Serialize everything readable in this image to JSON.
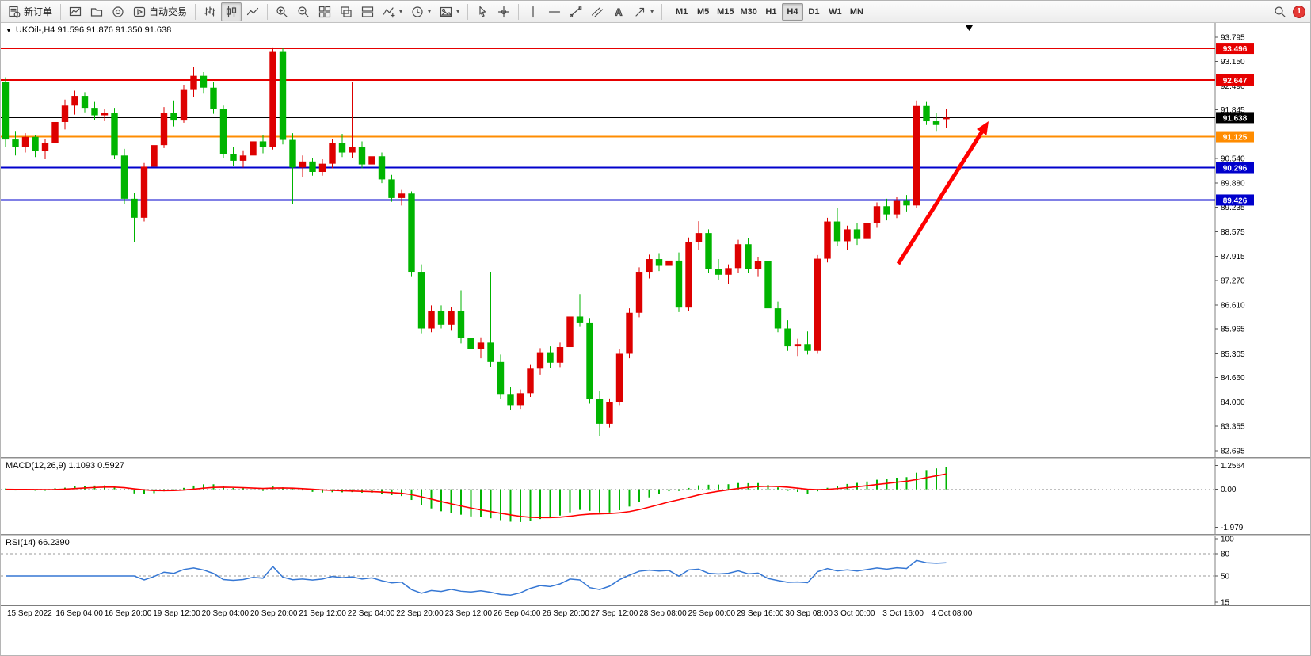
{
  "toolbar": {
    "new_order": "新订单",
    "autotrade": "自动交易",
    "timeframes": [
      "M1",
      "M5",
      "M15",
      "M30",
      "H1",
      "H4",
      "D1",
      "W1",
      "MN"
    ],
    "active_timeframe": "H4",
    "notification_count": "1"
  },
  "icons": {
    "symbol_dropdown": "▼",
    "dropdown_caret": "▾",
    "text_tool": "A"
  },
  "chart": {
    "symbol_info": "UKOil-,H4  91.596 91.876 91.350 91.638"
  },
  "macd": {
    "label": "MACD(12,26,9) 1.1093 0.5927",
    "axis": [
      "1.2564",
      "0.00",
      "-1.979"
    ]
  },
  "rsi": {
    "label": "RSI(14) 66.2390",
    "axis": [
      "100",
      "80",
      "50",
      "15"
    ],
    "levels": [
      80,
      50
    ]
  },
  "chart_data": {
    "type": "candlestick",
    "symbol": "UKOil-",
    "timeframe": "H4",
    "title": "UKOil-,H4",
    "current_ohlc": {
      "open": 91.596,
      "high": 91.876,
      "low": 91.35,
      "close": 91.638
    },
    "price_axis_ticks": [
      "93.795",
      "93.150",
      "92.490",
      "91.845",
      "90.540",
      "89.880",
      "89.235",
      "88.575",
      "87.915",
      "87.270",
      "86.610",
      "85.965",
      "85.305",
      "84.660",
      "84.000",
      "83.355",
      "82.695"
    ],
    "time_axis": [
      "15 Sep 2022",
      "16 Sep 04:00",
      "16 Sep 20:00",
      "19 Sep 12:00",
      "20 Sep 04:00",
      "20 Sep 20:00",
      "21 Sep 12:00",
      "22 Sep 04:00",
      "22 Sep 20:00",
      "23 Sep 12:00",
      "26 Sep 04:00",
      "26 Sep 20:00",
      "27 Sep 12:00",
      "28 Sep 08:00",
      "29 Sep 00:00",
      "29 Sep 16:00",
      "30 Sep 08:00",
      "3 Oct 00:00",
      "3 Oct 16:00",
      "4 Oct 08:00"
    ],
    "hlines": [
      {
        "value": 93.496,
        "label": "93.496",
        "color": "#e60000",
        "width": 2
      },
      {
        "value": 92.647,
        "label": "92.647",
        "color": "#e60000",
        "width": 2
      },
      {
        "value": 91.638,
        "label": "91.638",
        "color": "#000000",
        "width": 1
      },
      {
        "value": 91.125,
        "label": "91.125",
        "color": "#ff8c00",
        "width": 2
      },
      {
        "value": 90.296,
        "label": "90.296",
        "color": "#0000cc",
        "width": 1.6
      },
      {
        "value": 89.426,
        "label": "89.426",
        "color": "#0000cc",
        "width": 1.6
      }
    ],
    "colors": {
      "bull": "#dd0000",
      "bear": "#00b400",
      "macd_hist": "#00b400",
      "macd_signal": "#ff0000",
      "rsi_line": "#3577d4",
      "axis_line": "#808080",
      "arrow": "#ff0000"
    },
    "arrow": {
      "from": [
        1133,
        304
      ],
      "to": [
        1247,
        124
      ],
      "color": "#ff0000"
    },
    "candles": [
      [
        92.6,
        92.72,
        90.85,
        91.05
      ],
      [
        91.05,
        91.28,
        90.62,
        90.85
      ],
      [
        90.85,
        91.22,
        90.7,
        91.12
      ],
      [
        91.12,
        91.18,
        90.58,
        90.74
      ],
      [
        90.74,
        91.06,
        90.52,
        90.96
      ],
      [
        90.96,
        91.62,
        90.88,
        91.52
      ],
      [
        91.52,
        92.12,
        91.32,
        91.96
      ],
      [
        91.96,
        92.36,
        91.72,
        92.22
      ],
      [
        92.22,
        92.32,
        91.78,
        91.9
      ],
      [
        91.9,
        92.06,
        91.58,
        91.7
      ],
      [
        91.7,
        91.86,
        91.54,
        91.76
      ],
      [
        91.76,
        91.9,
        90.52,
        90.62
      ],
      [
        90.62,
        90.8,
        89.32,
        89.46
      ],
      [
        89.46,
        89.62,
        88.3,
        88.95
      ],
      [
        88.95,
        90.42,
        88.85,
        90.32
      ],
      [
        90.32,
        91.02,
        90.12,
        90.9
      ],
      [
        90.9,
        91.92,
        90.82,
        91.76
      ],
      [
        91.76,
        92.1,
        91.4,
        91.56
      ],
      [
        91.56,
        92.52,
        91.5,
        92.4
      ],
      [
        92.4,
        93.0,
        92.2,
        92.76
      ],
      [
        92.76,
        92.86,
        92.28,
        92.44
      ],
      [
        92.44,
        92.6,
        91.74,
        91.86
      ],
      [
        91.86,
        91.96,
        90.56,
        90.66
      ],
      [
        90.66,
        90.86,
        90.34,
        90.48
      ],
      [
        90.48,
        90.76,
        90.3,
        90.62
      ],
      [
        90.62,
        91.1,
        90.46,
        91.0
      ],
      [
        91.0,
        91.16,
        90.68,
        90.84
      ],
      [
        90.84,
        93.52,
        90.78,
        93.4
      ],
      [
        93.4,
        93.5,
        90.92,
        91.04
      ],
      [
        91.04,
        91.22,
        89.32,
        90.3
      ],
      [
        90.3,
        90.62,
        90.04,
        90.46
      ],
      [
        90.46,
        90.56,
        90.08,
        90.18
      ],
      [
        90.18,
        90.52,
        90.08,
        90.4
      ],
      [
        90.4,
        91.06,
        90.28,
        90.96
      ],
      [
        90.96,
        91.2,
        90.58,
        90.7
      ],
      [
        90.7,
        92.6,
        90.55,
        90.86
      ],
      [
        90.86,
        91.0,
        90.28,
        90.38
      ],
      [
        90.38,
        90.7,
        90.18,
        90.6
      ],
      [
        90.6,
        90.7,
        89.88,
        89.98
      ],
      [
        89.98,
        90.1,
        89.38,
        89.48
      ],
      [
        89.48,
        89.7,
        89.28,
        89.6
      ],
      [
        89.6,
        89.66,
        87.38,
        87.5
      ],
      [
        87.5,
        87.7,
        85.85,
        85.98
      ],
      [
        85.98,
        86.6,
        85.88,
        86.45
      ],
      [
        86.45,
        86.6,
        85.98,
        86.08
      ],
      [
        86.08,
        86.55,
        85.92,
        86.44
      ],
      [
        86.44,
        87.0,
        85.58,
        85.72
      ],
      [
        85.72,
        85.98,
        85.28,
        85.42
      ],
      [
        85.42,
        85.74,
        85.18,
        85.6
      ],
      [
        85.6,
        87.5,
        84.95,
        85.08
      ],
      [
        85.08,
        85.28,
        84.08,
        84.22
      ],
      [
        84.22,
        84.4,
        83.78,
        83.92
      ],
      [
        83.92,
        84.34,
        83.82,
        84.24
      ],
      [
        84.24,
        85.0,
        84.14,
        84.9
      ],
      [
        84.9,
        85.45,
        84.74,
        85.34
      ],
      [
        85.34,
        85.5,
        84.92,
        85.06
      ],
      [
        85.06,
        85.6,
        84.94,
        85.48
      ],
      [
        85.48,
        86.4,
        85.38,
        86.3
      ],
      [
        86.3,
        86.9,
        86.02,
        86.12
      ],
      [
        86.12,
        86.24,
        83.96,
        84.08
      ],
      [
        84.08,
        84.3,
        83.1,
        83.42
      ],
      [
        83.42,
        84.1,
        83.32,
        84.0
      ],
      [
        84.0,
        85.42,
        83.92,
        85.3
      ],
      [
        85.3,
        86.52,
        85.18,
        86.4
      ],
      [
        86.4,
        87.62,
        86.28,
        87.5
      ],
      [
        87.5,
        87.96,
        87.32,
        87.84
      ],
      [
        87.84,
        88.0,
        87.52,
        87.66
      ],
      [
        87.66,
        87.9,
        87.42,
        87.8
      ],
      [
        87.8,
        88.02,
        86.42,
        86.54
      ],
      [
        86.54,
        88.42,
        86.44,
        88.3
      ],
      [
        88.3,
        88.86,
        88.08,
        88.54
      ],
      [
        88.54,
        88.64,
        87.48,
        87.58
      ],
      [
        87.58,
        87.84,
        87.28,
        87.42
      ],
      [
        87.42,
        87.7,
        87.18,
        87.6
      ],
      [
        87.6,
        88.36,
        87.48,
        88.24
      ],
      [
        88.24,
        88.4,
        87.48,
        87.58
      ],
      [
        87.58,
        87.9,
        87.38,
        87.78
      ],
      [
        87.78,
        87.9,
        86.38,
        86.52
      ],
      [
        86.52,
        86.7,
        85.88,
        85.98
      ],
      [
        85.98,
        86.2,
        85.38,
        85.5
      ],
      [
        85.5,
        85.7,
        85.24,
        85.56
      ],
      [
        85.56,
        85.9,
        85.28,
        85.38
      ],
      [
        85.38,
        87.95,
        85.3,
        87.85
      ],
      [
        87.85,
        88.95,
        87.75,
        88.85
      ],
      [
        88.85,
        89.22,
        88.18,
        88.32
      ],
      [
        88.32,
        88.74,
        88.08,
        88.64
      ],
      [
        88.64,
        88.8,
        88.22,
        88.38
      ],
      [
        88.38,
        88.9,
        88.28,
        88.8
      ],
      [
        88.8,
        89.36,
        88.68,
        89.26
      ],
      [
        89.26,
        89.46,
        88.88,
        89.04
      ],
      [
        89.04,
        89.5,
        88.94,
        89.4
      ],
      [
        89.4,
        89.56,
        89.12,
        89.28
      ],
      [
        89.28,
        92.1,
        89.22,
        91.95
      ],
      [
        91.95,
        92.06,
        91.44,
        91.54
      ],
      [
        91.54,
        91.76,
        91.28,
        91.44
      ],
      [
        91.596,
        91.876,
        91.35,
        91.638
      ]
    ]
  }
}
